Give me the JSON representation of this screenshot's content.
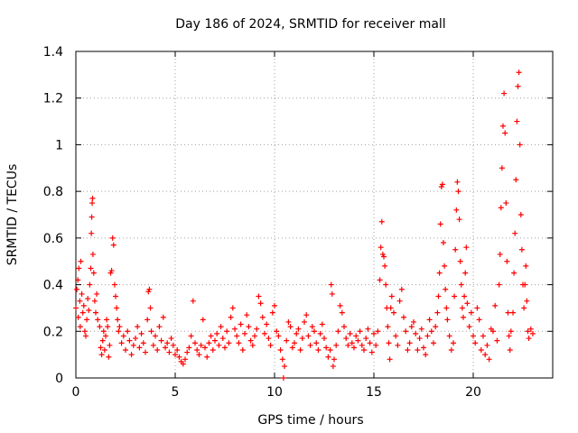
{
  "chart_data": {
    "type": "scatter",
    "title": "Day 186 of 2024, SRMTID for receiver mall",
    "xlabel": "GPS time / hours",
    "ylabel": "SRMTID / TECUs",
    "xlim": [
      0,
      24
    ],
    "ylim": [
      0,
      1.4
    ],
    "xticks": [
      0,
      5,
      10,
      15,
      20
    ],
    "yticks": [
      0,
      0.2,
      0.4,
      0.6,
      0.8,
      1,
      1.2,
      1.4
    ],
    "ytick_labels": [
      "0",
      "0.2",
      "0.4",
      "0.6",
      "0.8",
      "1",
      "1.2",
      "1.4"
    ],
    "grid": true,
    "marker": "+",
    "color": "#ff0000",
    "series": [
      {
        "name": "SRMTID",
        "points": [
          [
            0.0,
            0.3
          ],
          [
            0.05,
            0.38
          ],
          [
            0.1,
            0.42
          ],
          [
            0.12,
            0.26
          ],
          [
            0.15,
            0.47
          ],
          [
            0.2,
            0.33
          ],
          [
            0.22,
            0.22
          ],
          [
            0.25,
            0.5
          ],
          [
            0.3,
            0.36
          ],
          [
            0.35,
            0.28
          ],
          [
            0.4,
            0.31
          ],
          [
            0.45,
            0.2
          ],
          [
            0.5,
            0.18
          ],
          [
            0.55,
            0.25
          ],
          [
            0.6,
            0.34
          ],
          [
            0.65,
            0.29
          ],
          [
            0.7,
            0.4
          ],
          [
            0.75,
            0.47
          ],
          [
            0.78,
            0.62
          ],
          [
            0.8,
            0.69
          ],
          [
            0.82,
            0.75
          ],
          [
            0.84,
            0.77
          ],
          [
            0.86,
            0.53
          ],
          [
            0.9,
            0.45
          ],
          [
            0.95,
            0.33
          ],
          [
            1.0,
            0.28
          ],
          [
            1.05,
            0.36
          ],
          [
            1.1,
            0.25
          ],
          [
            1.2,
            0.22
          ],
          [
            1.25,
            0.13
          ],
          [
            1.3,
            0.1
          ],
          [
            1.35,
            0.16
          ],
          [
            1.4,
            0.2
          ],
          [
            1.45,
            0.12
          ],
          [
            1.5,
            0.18
          ],
          [
            1.55,
            0.25
          ],
          [
            1.6,
            0.22
          ],
          [
            1.65,
            0.09
          ],
          [
            1.7,
            0.14
          ],
          [
            1.75,
            0.45
          ],
          [
            1.8,
            0.46
          ],
          [
            1.85,
            0.6
          ],
          [
            1.9,
            0.57
          ],
          [
            1.95,
            0.4
          ],
          [
            2.0,
            0.35
          ],
          [
            2.05,
            0.3
          ],
          [
            2.1,
            0.25
          ],
          [
            2.15,
            0.2
          ],
          [
            2.2,
            0.22
          ],
          [
            2.3,
            0.15
          ],
          [
            2.4,
            0.18
          ],
          [
            2.5,
            0.12
          ],
          [
            2.6,
            0.2
          ],
          [
            2.7,
            0.16
          ],
          [
            2.8,
            0.1
          ],
          [
            2.9,
            0.14
          ],
          [
            3.0,
            0.17
          ],
          [
            3.1,
            0.22
          ],
          [
            3.2,
            0.13
          ],
          [
            3.3,
            0.19
          ],
          [
            3.4,
            0.15
          ],
          [
            3.5,
            0.11
          ],
          [
            3.6,
            0.25
          ],
          [
            3.65,
            0.37
          ],
          [
            3.7,
            0.38
          ],
          [
            3.75,
            0.3
          ],
          [
            3.8,
            0.2
          ],
          [
            3.9,
            0.14
          ],
          [
            4.0,
            0.18
          ],
          [
            4.1,
            0.12
          ],
          [
            4.2,
            0.22
          ],
          [
            4.3,
            0.16
          ],
          [
            4.4,
            0.26
          ],
          [
            4.5,
            0.13
          ],
          [
            4.6,
            0.15
          ],
          [
            4.7,
            0.11
          ],
          [
            4.8,
            0.17
          ],
          [
            4.9,
            0.14
          ],
          [
            5.0,
            0.1
          ],
          [
            5.1,
            0.12
          ],
          [
            5.2,
            0.09
          ],
          [
            5.3,
            0.07
          ],
          [
            5.4,
            0.06
          ],
          [
            5.5,
            0.08
          ],
          [
            5.6,
            0.11
          ],
          [
            5.7,
            0.13
          ],
          [
            5.8,
            0.18
          ],
          [
            5.9,
            0.33
          ],
          [
            6.0,
            0.15
          ],
          [
            6.1,
            0.12
          ],
          [
            6.2,
            0.1
          ],
          [
            6.3,
            0.14
          ],
          [
            6.4,
            0.25
          ],
          [
            6.5,
            0.13
          ],
          [
            6.6,
            0.09
          ],
          [
            6.7,
            0.15
          ],
          [
            6.8,
            0.18
          ],
          [
            6.9,
            0.12
          ],
          [
            7.0,
            0.16
          ],
          [
            7.1,
            0.19
          ],
          [
            7.2,
            0.14
          ],
          [
            7.3,
            0.22
          ],
          [
            7.4,
            0.17
          ],
          [
            7.5,
            0.13
          ],
          [
            7.6,
            0.2
          ],
          [
            7.7,
            0.15
          ],
          [
            7.8,
            0.26
          ],
          [
            7.9,
            0.3
          ],
          [
            8.0,
            0.21
          ],
          [
            8.1,
            0.18
          ],
          [
            8.2,
            0.15
          ],
          [
            8.3,
            0.23
          ],
          [
            8.4,
            0.12
          ],
          [
            8.5,
            0.19
          ],
          [
            8.6,
            0.27
          ],
          [
            8.7,
            0.22
          ],
          [
            8.8,
            0.16
          ],
          [
            8.9,
            0.14
          ],
          [
            9.0,
            0.18
          ],
          [
            9.1,
            0.21
          ],
          [
            9.2,
            0.35
          ],
          [
            9.3,
            0.32
          ],
          [
            9.4,
            0.26
          ],
          [
            9.5,
            0.19
          ],
          [
            9.6,
            0.23
          ],
          [
            9.7,
            0.17
          ],
          [
            9.8,
            0.14
          ],
          [
            9.9,
            0.28
          ],
          [
            10.0,
            0.31
          ],
          [
            10.1,
            0.2
          ],
          [
            10.2,
            0.18
          ],
          [
            10.3,
            0.12
          ],
          [
            10.4,
            0.08
          ],
          [
            10.45,
            0.0
          ],
          [
            10.5,
            0.05
          ],
          [
            10.6,
            0.16
          ],
          [
            10.7,
            0.24
          ],
          [
            10.8,
            0.22
          ],
          [
            10.9,
            0.13
          ],
          [
            11.0,
            0.15
          ],
          [
            11.1,
            0.19
          ],
          [
            11.2,
            0.21
          ],
          [
            11.3,
            0.12
          ],
          [
            11.4,
            0.17
          ],
          [
            11.5,
            0.24
          ],
          [
            11.6,
            0.27
          ],
          [
            11.7,
            0.18
          ],
          [
            11.8,
            0.14
          ],
          [
            11.9,
            0.22
          ],
          [
            12.0,
            0.2
          ],
          [
            12.1,
            0.15
          ],
          [
            12.2,
            0.12
          ],
          [
            12.3,
            0.19
          ],
          [
            12.4,
            0.23
          ],
          [
            12.5,
            0.17
          ],
          [
            12.6,
            0.13
          ],
          [
            12.7,
            0.09
          ],
          [
            12.8,
            0.12
          ],
          [
            12.85,
            0.4
          ],
          [
            12.9,
            0.36
          ],
          [
            12.95,
            0.05
          ],
          [
            13.0,
            0.08
          ],
          [
            13.1,
            0.14
          ],
          [
            13.2,
            0.2
          ],
          [
            13.3,
            0.31
          ],
          [
            13.4,
            0.28
          ],
          [
            13.5,
            0.22
          ],
          [
            13.6,
            0.17
          ],
          [
            13.7,
            0.14
          ],
          [
            13.8,
            0.19
          ],
          [
            13.9,
            0.15
          ],
          [
            14.0,
            0.13
          ],
          [
            14.1,
            0.18
          ],
          [
            14.2,
            0.16
          ],
          [
            14.3,
            0.2
          ],
          [
            14.4,
            0.14
          ],
          [
            14.5,
            0.12
          ],
          [
            14.6,
            0.17
          ],
          [
            14.7,
            0.21
          ],
          [
            14.8,
            0.15
          ],
          [
            14.9,
            0.11
          ],
          [
            15.0,
            0.19
          ],
          [
            15.1,
            0.14
          ],
          [
            15.2,
            0.2
          ],
          [
            15.3,
            0.42
          ],
          [
            15.35,
            0.56
          ],
          [
            15.4,
            0.67
          ],
          [
            15.45,
            0.53
          ],
          [
            15.5,
            0.52
          ],
          [
            15.55,
            0.48
          ],
          [
            15.6,
            0.4
          ],
          [
            15.65,
            0.3
          ],
          [
            15.7,
            0.22
          ],
          [
            15.75,
            0.15
          ],
          [
            15.8,
            0.08
          ],
          [
            15.85,
            0.3
          ],
          [
            15.9,
            0.35
          ],
          [
            16.0,
            0.28
          ],
          [
            16.1,
            0.18
          ],
          [
            16.2,
            0.14
          ],
          [
            16.3,
            0.33
          ],
          [
            16.4,
            0.38
          ],
          [
            16.5,
            0.26
          ],
          [
            16.6,
            0.2
          ],
          [
            16.7,
            0.12
          ],
          [
            16.8,
            0.15
          ],
          [
            16.9,
            0.22
          ],
          [
            17.0,
            0.24
          ],
          [
            17.1,
            0.19
          ],
          [
            17.2,
            0.12
          ],
          [
            17.3,
            0.17
          ],
          [
            17.4,
            0.21
          ],
          [
            17.5,
            0.13
          ],
          [
            17.6,
            0.1
          ],
          [
            17.7,
            0.18
          ],
          [
            17.8,
            0.25
          ],
          [
            17.9,
            0.2
          ],
          [
            18.0,
            0.15
          ],
          [
            18.1,
            0.22
          ],
          [
            18.2,
            0.28
          ],
          [
            18.25,
            0.35
          ],
          [
            18.3,
            0.45
          ],
          [
            18.35,
            0.66
          ],
          [
            18.4,
            0.82
          ],
          [
            18.45,
            0.83
          ],
          [
            18.5,
            0.58
          ],
          [
            18.55,
            0.48
          ],
          [
            18.6,
            0.38
          ],
          [
            18.65,
            0.3
          ],
          [
            18.7,
            0.25
          ],
          [
            18.8,
            0.18
          ],
          [
            18.9,
            0.12
          ],
          [
            19.0,
            0.15
          ],
          [
            19.05,
            0.35
          ],
          [
            19.1,
            0.55
          ],
          [
            19.15,
            0.72
          ],
          [
            19.2,
            0.84
          ],
          [
            19.25,
            0.8
          ],
          [
            19.3,
            0.68
          ],
          [
            19.35,
            0.5
          ],
          [
            19.4,
            0.4
          ],
          [
            19.45,
            0.3
          ],
          [
            19.5,
            0.26
          ],
          [
            19.55,
            0.35
          ],
          [
            19.6,
            0.45
          ],
          [
            19.65,
            0.56
          ],
          [
            19.7,
            0.32
          ],
          [
            19.8,
            0.22
          ],
          [
            19.9,
            0.28
          ],
          [
            20.0,
            0.18
          ],
          [
            20.1,
            0.15
          ],
          [
            20.2,
            0.3
          ],
          [
            20.3,
            0.25
          ],
          [
            20.4,
            0.12
          ],
          [
            20.5,
            0.18
          ],
          [
            20.6,
            0.1
          ],
          [
            20.7,
            0.14
          ],
          [
            20.8,
            0.08
          ],
          [
            20.9,
            0.21
          ],
          [
            21.0,
            0.2
          ],
          [
            21.1,
            0.31
          ],
          [
            21.2,
            0.16
          ],
          [
            21.3,
            0.4
          ],
          [
            21.35,
            0.53
          ],
          [
            21.4,
            0.73
          ],
          [
            21.45,
            0.9
          ],
          [
            21.5,
            1.08
          ],
          [
            21.55,
            1.22
          ],
          [
            21.6,
            1.05
          ],
          [
            21.65,
            0.75
          ],
          [
            21.7,
            0.5
          ],
          [
            21.75,
            0.28
          ],
          [
            21.8,
            0.18
          ],
          [
            21.85,
            0.12
          ],
          [
            21.9,
            0.2
          ],
          [
            22.0,
            0.28
          ],
          [
            22.05,
            0.45
          ],
          [
            22.1,
            0.62
          ],
          [
            22.15,
            0.85
          ],
          [
            22.2,
            1.1
          ],
          [
            22.25,
            1.25
          ],
          [
            22.3,
            1.31
          ],
          [
            22.35,
            1.0
          ],
          [
            22.4,
            0.7
          ],
          [
            22.45,
            0.55
          ],
          [
            22.5,
            0.4
          ],
          [
            22.55,
            0.3
          ],
          [
            22.6,
            0.4
          ],
          [
            22.65,
            0.48
          ],
          [
            22.7,
            0.33
          ],
          [
            22.75,
            0.2
          ],
          [
            22.8,
            0.17
          ],
          [
            22.9,
            0.21
          ],
          [
            23.0,
            0.19
          ]
        ]
      }
    ]
  }
}
